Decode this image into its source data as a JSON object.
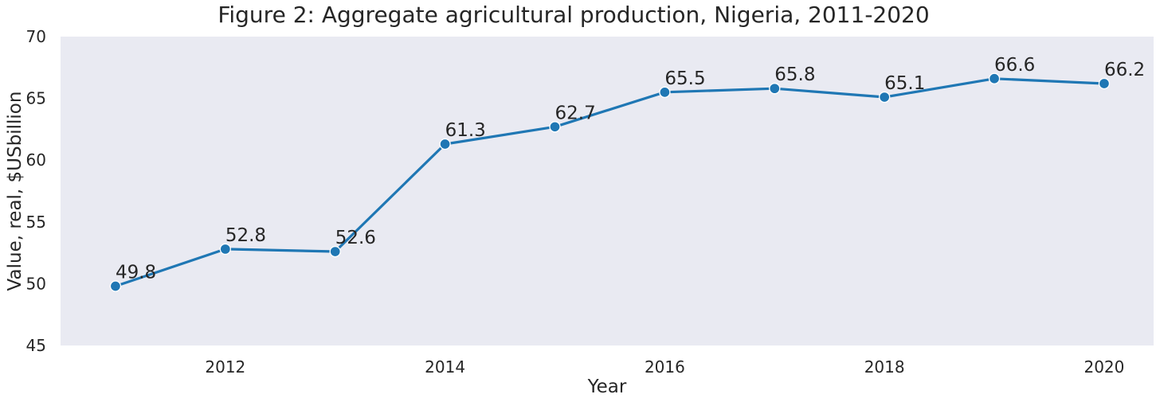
{
  "chart_data": {
    "type": "line",
    "title": "Figure 2: Aggregate agricultural production, Nigeria, 2011-2020",
    "xlabel": "Year",
    "ylabel": "Value, real, $USbillion",
    "x": [
      2011,
      2012,
      2013,
      2014,
      2015,
      2016,
      2017,
      2018,
      2019,
      2020
    ],
    "series": [
      {
        "values": [
          49.8,
          52.8,
          52.6,
          61.3,
          62.7,
          65.5,
          65.8,
          65.1,
          66.6,
          66.2
        ]
      }
    ],
    "data_labels": [
      "49.8",
      "52.8",
      "52.6",
      "61.3",
      "62.7",
      "65.5",
      "65.8",
      "65.1",
      "66.6",
      "66.2"
    ],
    "xticks": [
      2012,
      2014,
      2016,
      2018,
      2020
    ],
    "yticks": [
      45,
      50,
      55,
      60,
      65,
      70
    ],
    "xlim": [
      2010.5,
      2020.45
    ],
    "ylim": [
      45,
      70
    ],
    "grid": false,
    "legend": "none",
    "colors": {
      "line": "#1f77b4",
      "plot_background": "#e9eaf2",
      "text": "#262626"
    }
  }
}
